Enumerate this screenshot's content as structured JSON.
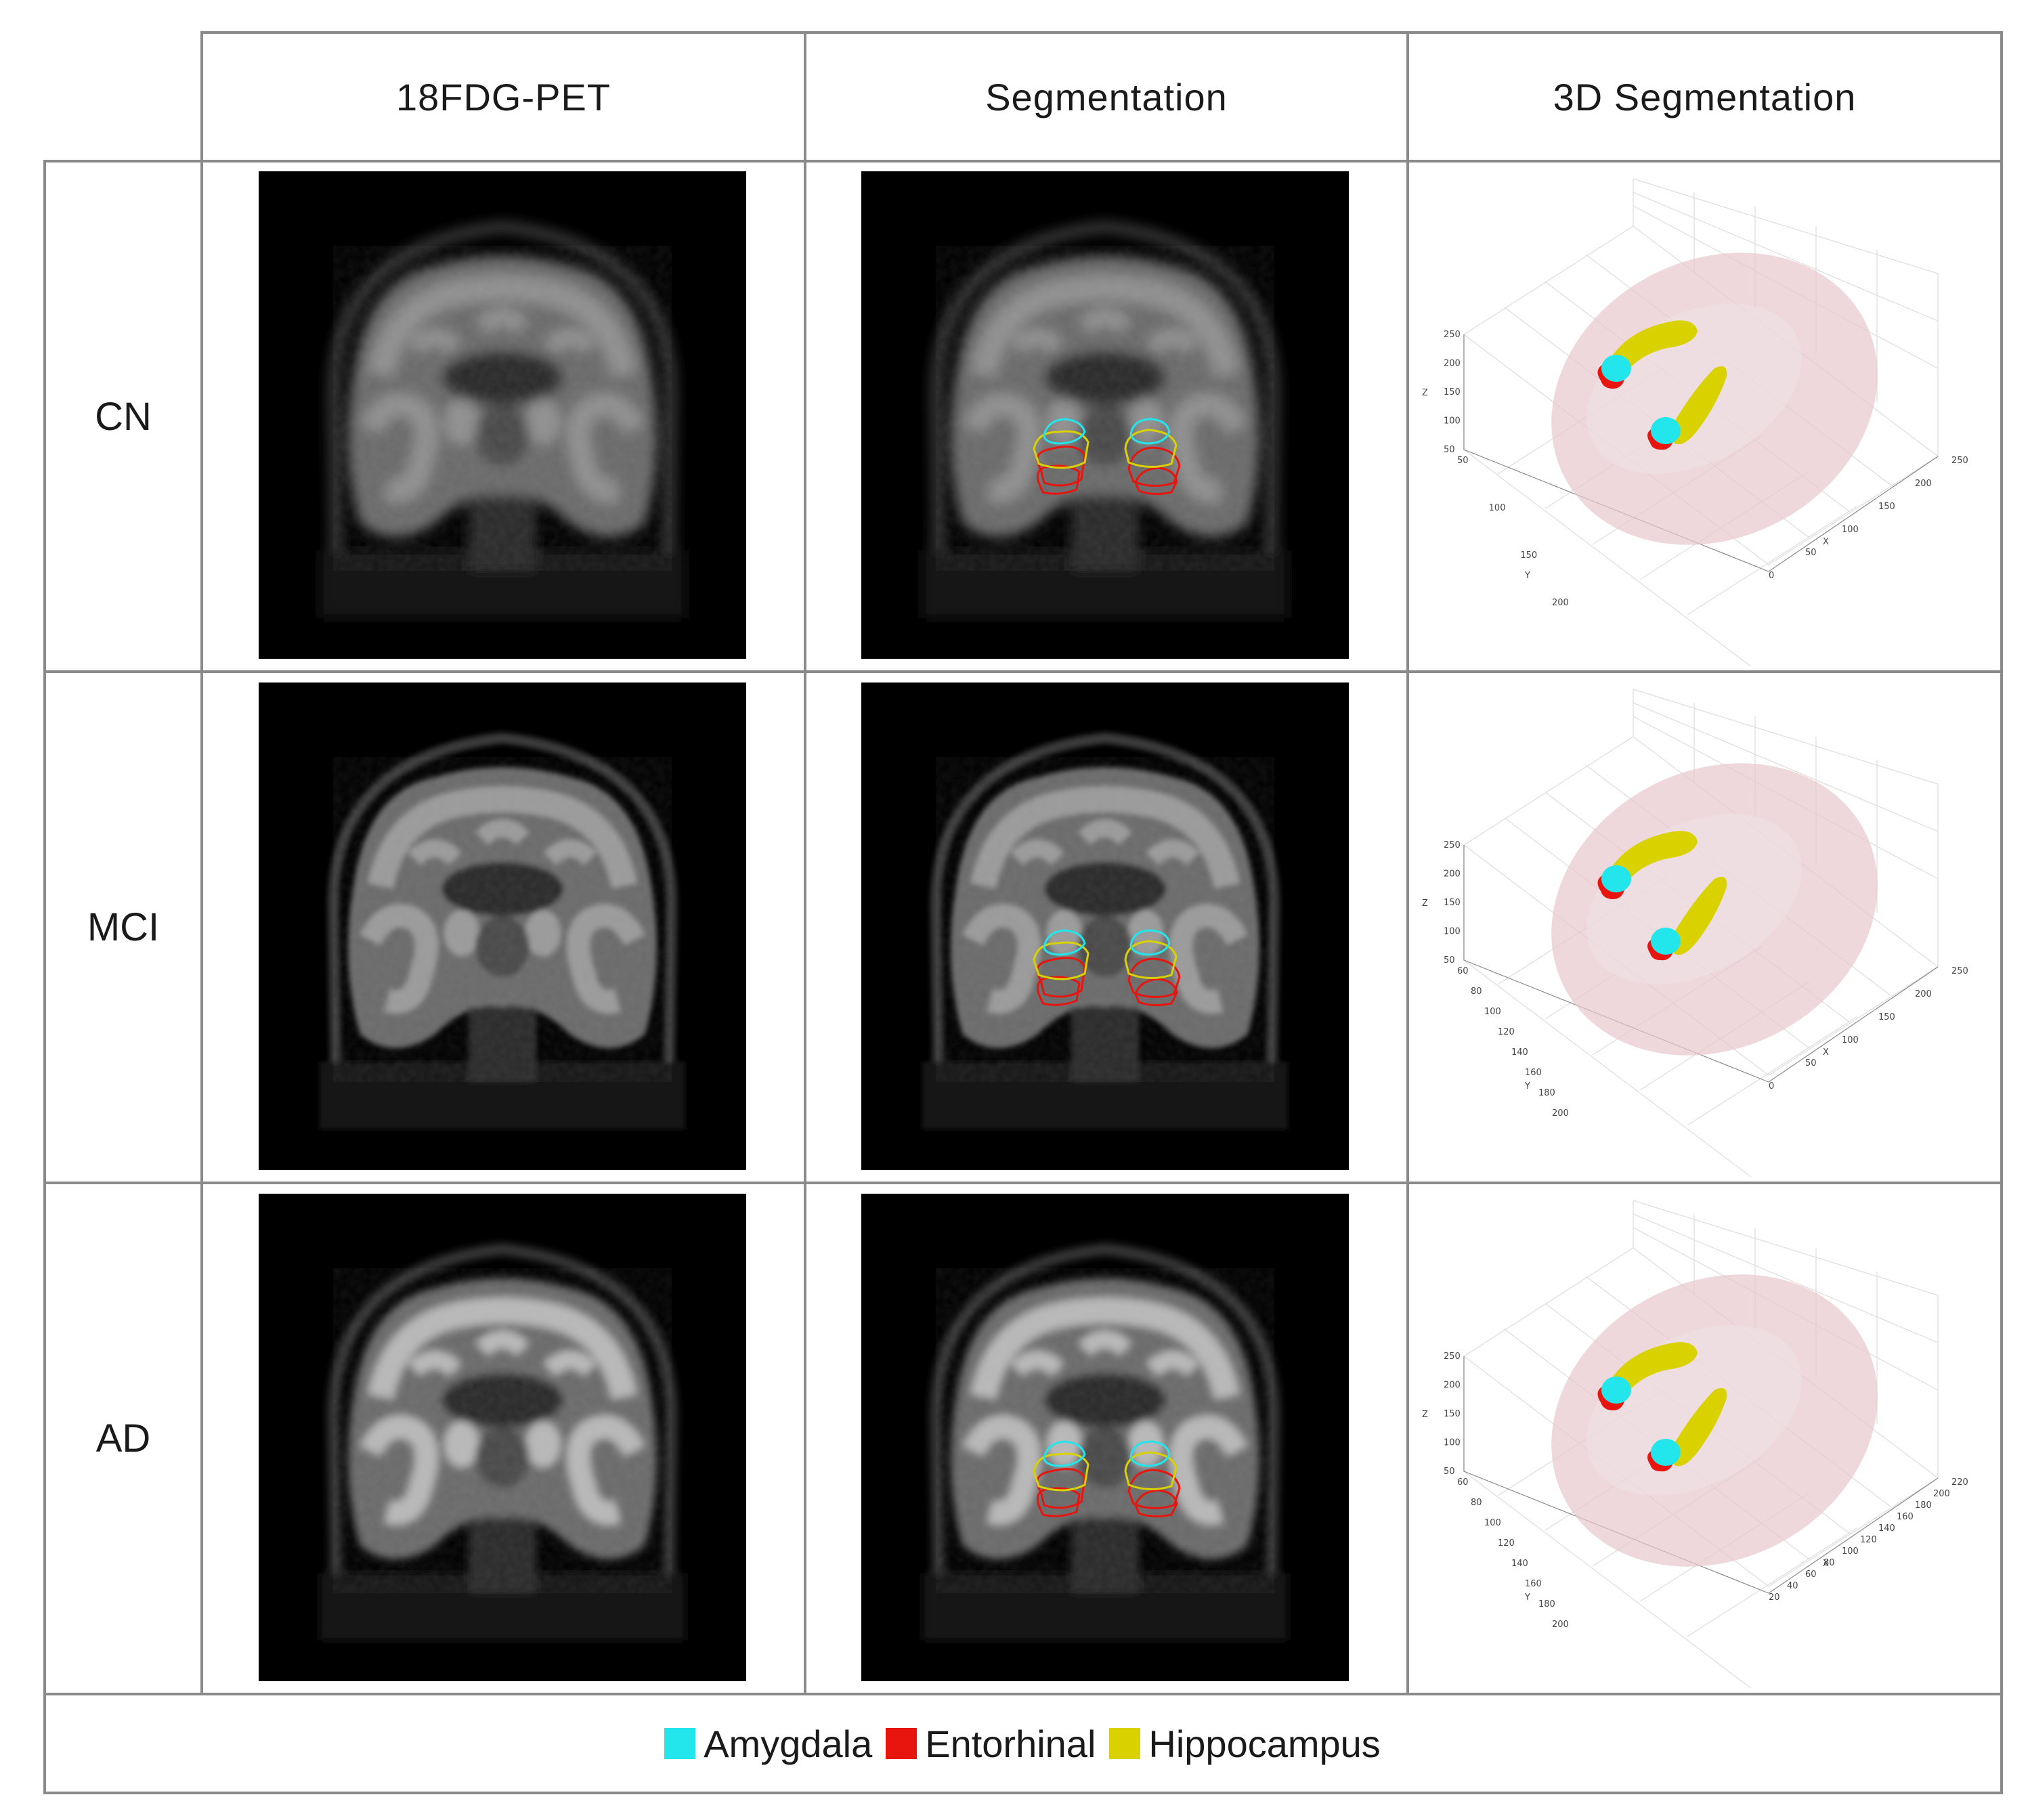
{
  "columns": [
    "18FDG-PET",
    "Segmentation",
    "3D Segmentation"
  ],
  "rows": [
    {
      "label": "CN",
      "plot": {
        "z_ticks": [
          "250",
          "200",
          "150",
          "100",
          "50"
        ],
        "y_ticks": [
          "50",
          "100",
          "150",
          "200"
        ],
        "x_ticks": [
          "0",
          "50",
          "100",
          "150",
          "200",
          "250"
        ],
        "x_label": "X",
        "y_label": "Y",
        "z_label": "Z"
      }
    },
    {
      "label": "MCI",
      "plot": {
        "z_ticks": [
          "250",
          "200",
          "150",
          "100",
          "50"
        ],
        "y_ticks": [
          "60",
          "80",
          "100",
          "120",
          "140",
          "160",
          "180",
          "200"
        ],
        "x_ticks": [
          "0",
          "50",
          "100",
          "150",
          "200",
          "250"
        ],
        "x_label": "X",
        "y_label": "Y",
        "z_label": "Z"
      }
    },
    {
      "label": "AD",
      "plot": {
        "z_ticks": [
          "250",
          "200",
          "150",
          "100",
          "50"
        ],
        "y_ticks": [
          "60",
          "80",
          "100",
          "120",
          "140",
          "160",
          "180",
          "200"
        ],
        "x_ticks": [
          "20",
          "40",
          "60",
          "80",
          "100",
          "120",
          "140",
          "160",
          "180",
          "200",
          "220"
        ],
        "x_label": "X",
        "y_label": "Y",
        "z_label": "Z"
      }
    }
  ],
  "legend": [
    {
      "label": "Amygdala",
      "color": "#22e6ec"
    },
    {
      "label": "Entorhinal",
      "color": "#e8150f"
    },
    {
      "label": "Hippocampus",
      "color": "#d9d100"
    }
  ]
}
